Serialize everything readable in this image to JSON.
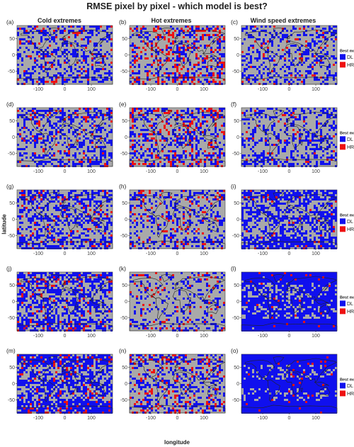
{
  "title": "RMSE pixel by pixel - which model is best?",
  "xlabel": "longitude",
  "ylabel": "latitude",
  "columns": [
    "Cold extremes",
    "Hot extremes",
    "Wind speed extremes"
  ],
  "panel_letters": [
    [
      "(a)",
      "(b)",
      "(c)"
    ],
    [
      "(d)",
      "(e)",
      "(f)"
    ],
    [
      "(g)",
      "(h)",
      "(i)"
    ],
    [
      "(j)",
      "(k)",
      "(l)"
    ],
    [
      "(m)",
      "(n)",
      "(o)"
    ]
  ],
  "legend": {
    "title": "Best model",
    "items": [
      {
        "label": "DL",
        "color": "#1010ee"
      },
      {
        "label": "HRES",
        "color": "#ee1111"
      }
    ]
  },
  "colors": {
    "background": "#a9a9a9",
    "dl": "#1010ee",
    "hres": "#ee1111",
    "coast": "#222222"
  },
  "chart_data": {
    "type": "heatmap",
    "grid_rows": 5,
    "grid_cols": 3,
    "xlim": [
      -180,
      180
    ],
    "ylim": [
      -90,
      90
    ],
    "xticks": [
      -100,
      0,
      100
    ],
    "yticks": [
      50,
      0,
      -50
    ],
    "categories": [
      "DL",
      "HRES"
    ],
    "panels": [
      {
        "id": "(a)",
        "column": "Cold extremes",
        "dl_share": 0.3,
        "hres_share": 0.05
      },
      {
        "id": "(b)",
        "column": "Hot extremes",
        "dl_share": 0.25,
        "hres_share": 0.12
      },
      {
        "id": "(c)",
        "column": "Wind speed extremes",
        "dl_share": 0.28,
        "hres_share": 0.03
      },
      {
        "id": "(d)",
        "column": "Cold extremes",
        "dl_share": 0.32,
        "hres_share": 0.05
      },
      {
        "id": "(e)",
        "column": "Hot extremes",
        "dl_share": 0.28,
        "hres_share": 0.1
      },
      {
        "id": "(f)",
        "column": "Wind speed extremes",
        "dl_share": 0.3,
        "hres_share": 0.02
      },
      {
        "id": "(g)",
        "column": "Cold extremes",
        "dl_share": 0.38,
        "hres_share": 0.04
      },
      {
        "id": "(h)",
        "column": "Hot extremes",
        "dl_share": 0.25,
        "hres_share": 0.05
      },
      {
        "id": "(i)",
        "column": "Wind speed extremes",
        "dl_share": 0.48,
        "hres_share": 0.02
      },
      {
        "id": "(j)",
        "column": "Cold extremes",
        "dl_share": 0.45,
        "hres_share": 0.05
      },
      {
        "id": "(k)",
        "column": "Hot extremes",
        "dl_share": 0.2,
        "hres_share": 0.04
      },
      {
        "id": "(l)",
        "column": "Wind speed extremes",
        "dl_share": 0.72,
        "hres_share": 0.02
      },
      {
        "id": "(m)",
        "column": "Cold extremes",
        "dl_share": 0.55,
        "hres_share": 0.05
      },
      {
        "id": "(n)",
        "column": "Hot extremes",
        "dl_share": 0.3,
        "hres_share": 0.08
      },
      {
        "id": "(o)",
        "column": "Wind speed extremes",
        "dl_share": 0.85,
        "hres_share": 0.02
      }
    ]
  }
}
